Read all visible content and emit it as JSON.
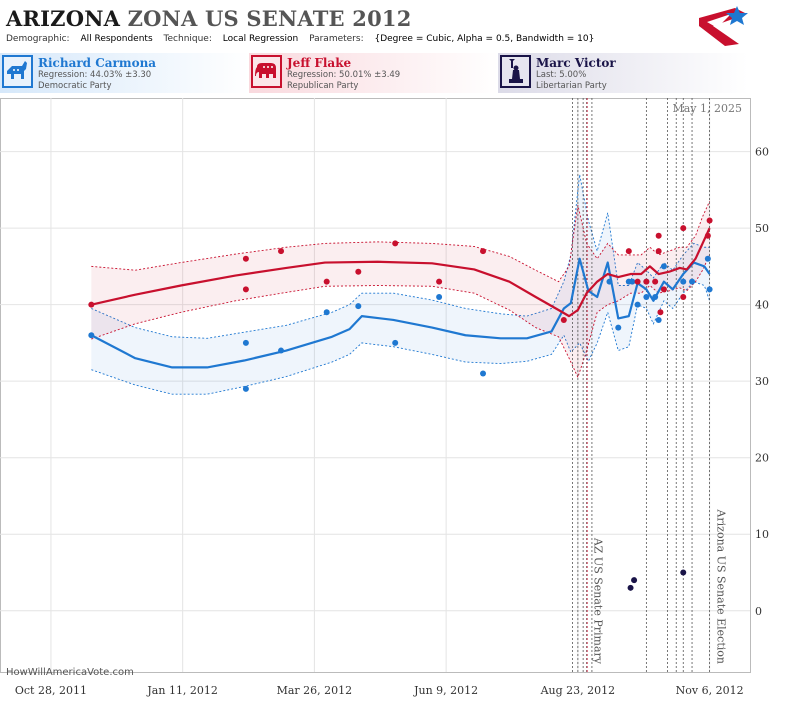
{
  "title": {
    "bold": "ARIZONA",
    "rest": "ZONA US SENATE 2012"
  },
  "params": {
    "demographic_label": "Demographic:",
    "demographic_value": "All Respondents",
    "technique_label": "Technique:",
    "technique_value": "Local Regression",
    "parameters_label": "Parameters:",
    "parameters_value": "{Degree = Cubic, Alpha = 0.5, Bandwidth = 10}"
  },
  "candidates": [
    {
      "name": "Richard Carmona",
      "line1": "Regression: 44.03% ±3.30",
      "line2": "Democratic Party",
      "color": "#1f78d1",
      "icon": "donkey-icon"
    },
    {
      "name": "Jeff Flake",
      "line1": "Regression: 50.01% ±3.49",
      "line2": "Republican Party",
      "color": "#c8102e",
      "icon": "elephant-icon"
    },
    {
      "name": "Marc Victor",
      "line1": "Last: 5.00%",
      "line2": "Libertarian Party",
      "color": "#1a1448",
      "icon": "statue-of-liberty-icon"
    }
  ],
  "footer": "HowWillAmericaVote.com",
  "chart_data": {
    "type": "line",
    "date_label": "May 1, 2025",
    "x_tick_labels": [
      "Oct 28, 2011",
      "Jan 11, 2012",
      "Mar 26, 2012",
      "Jun 9, 2012",
      "Aug 23, 2012",
      "Nov 6, 2012"
    ],
    "x_ticks": [
      "2011-10-28",
      "2012-01-11",
      "2012-03-26",
      "2012-06-09",
      "2012-08-23",
      "2012-11-06"
    ],
    "xlim": [
      "2011-09-29",
      "2012-11-29"
    ],
    "y_ticks": [
      0,
      10,
      20,
      30,
      40,
      50,
      60
    ],
    "ylim": [
      -8,
      67
    ],
    "events": [
      {
        "date": "2012-08-28",
        "label": "AZ US Senate Primary"
      },
      {
        "date": "2012-11-06",
        "label": "Arizona US Senate Election"
      }
    ],
    "event_lines": [
      "2012-08-20",
      "2012-08-23",
      "2012-08-26",
      "2012-08-28",
      "2012-08-31",
      "2012-10-01",
      "2012-10-13",
      "2012-10-18",
      "2012-10-22",
      "2012-10-27",
      "2012-11-06"
    ],
    "series": [
      {
        "name": "Richard Carmona",
        "color": "#1f78d1",
        "line": [
          [
            "2011-11-20",
            36
          ],
          [
            "2011-12-15",
            33
          ],
          [
            "2012-01-05",
            31.8
          ],
          [
            "2012-01-25",
            31.8
          ],
          [
            "2012-02-15",
            32.7
          ],
          [
            "2012-03-10",
            34
          ],
          [
            "2012-04-05",
            35.8
          ],
          [
            "2012-04-15",
            36.8
          ],
          [
            "2012-04-22",
            38.5
          ],
          [
            "2012-05-10",
            38
          ],
          [
            "2012-06-01",
            37
          ],
          [
            "2012-06-20",
            36
          ],
          [
            "2012-07-10",
            35.6
          ],
          [
            "2012-07-25",
            35.6
          ],
          [
            "2012-08-08",
            36.5
          ],
          [
            "2012-08-15",
            39.5
          ],
          [
            "2012-08-19",
            40.2
          ],
          [
            "2012-08-24",
            46
          ],
          [
            "2012-08-29",
            41.8
          ],
          [
            "2012-09-03",
            41
          ],
          [
            "2012-09-09",
            45.5
          ],
          [
            "2012-09-15",
            38.2
          ],
          [
            "2012-09-21",
            38.5
          ],
          [
            "2012-09-26",
            42.8
          ],
          [
            "2012-10-01",
            42
          ],
          [
            "2012-10-05",
            40.5
          ],
          [
            "2012-10-11",
            43
          ],
          [
            "2012-10-16",
            42
          ],
          [
            "2012-10-22",
            44
          ],
          [
            "2012-10-28",
            45.5
          ],
          [
            "2012-11-03",
            45
          ],
          [
            "2012-11-06",
            44
          ]
        ],
        "upper": [
          [
            "2011-11-20",
            39.5
          ],
          [
            "2011-12-15",
            37
          ],
          [
            "2012-01-05",
            35.8
          ],
          [
            "2012-01-25",
            35.6
          ],
          [
            "2012-02-15",
            36.4
          ],
          [
            "2012-03-10",
            37.3
          ],
          [
            "2012-04-05",
            39
          ],
          [
            "2012-04-15",
            40
          ],
          [
            "2012-04-22",
            41.5
          ],
          [
            "2012-05-10",
            41.5
          ],
          [
            "2012-06-01",
            40.6
          ],
          [
            "2012-06-20",
            39.5
          ],
          [
            "2012-07-10",
            38.8
          ],
          [
            "2012-07-25",
            38.5
          ],
          [
            "2012-08-08",
            39.5
          ],
          [
            "2012-08-15",
            43
          ],
          [
            "2012-08-19",
            46.5
          ],
          [
            "2012-08-24",
            57
          ],
          [
            "2012-08-29",
            51
          ],
          [
            "2012-09-03",
            47
          ],
          [
            "2012-09-09",
            52
          ],
          [
            "2012-09-15",
            42.5
          ],
          [
            "2012-09-21",
            42.5
          ],
          [
            "2012-09-26",
            45.5
          ],
          [
            "2012-10-01",
            44.5
          ],
          [
            "2012-10-05",
            43.5
          ],
          [
            "2012-10-11",
            45.5
          ],
          [
            "2012-10-16",
            44.5
          ],
          [
            "2012-10-22",
            46.5
          ],
          [
            "2012-10-28",
            48
          ],
          [
            "2012-11-03",
            47.5
          ],
          [
            "2012-11-06",
            47.5
          ]
        ],
        "lower": [
          [
            "2011-11-20",
            31.5
          ],
          [
            "2011-12-15",
            29.5
          ],
          [
            "2012-01-05",
            28.3
          ],
          [
            "2012-01-25",
            28.3
          ],
          [
            "2012-02-15",
            29.3
          ],
          [
            "2012-03-10",
            30.6
          ],
          [
            "2012-04-05",
            32.5
          ],
          [
            "2012-04-15",
            33.5
          ],
          [
            "2012-04-22",
            35
          ],
          [
            "2012-05-10",
            34.5
          ],
          [
            "2012-06-01",
            33.5
          ],
          [
            "2012-06-20",
            32.5
          ],
          [
            "2012-07-10",
            32.3
          ],
          [
            "2012-07-25",
            32.6
          ],
          [
            "2012-08-08",
            33.5
          ],
          [
            "2012-08-15",
            36
          ],
          [
            "2012-08-19",
            33.8
          ],
          [
            "2012-08-24",
            35
          ],
          [
            "2012-08-29",
            32.6
          ],
          [
            "2012-09-03",
            35
          ],
          [
            "2012-09-09",
            39
          ],
          [
            "2012-09-15",
            34
          ],
          [
            "2012-09-21",
            34.5
          ],
          [
            "2012-09-26",
            40
          ],
          [
            "2012-10-01",
            39.5
          ],
          [
            "2012-10-05",
            37.5
          ],
          [
            "2012-10-11",
            40.5
          ],
          [
            "2012-10-16",
            39.5
          ],
          [
            "2012-10-22",
            41.5
          ],
          [
            "2012-10-28",
            43
          ],
          [
            "2012-11-03",
            42.5
          ],
          [
            "2012-11-06",
            40.5
          ]
        ],
        "polls": [
          [
            "2011-11-20",
            36
          ],
          [
            "2012-02-16",
            35
          ],
          [
            "2012-02-16",
            29
          ],
          [
            "2012-03-07",
            34
          ],
          [
            "2012-04-02",
            39
          ],
          [
            "2012-04-20",
            39.8
          ],
          [
            "2012-05-11",
            35
          ],
          [
            "2012-06-05",
            41
          ],
          [
            "2012-06-30",
            31
          ],
          [
            "2012-09-10",
            43
          ],
          [
            "2012-09-15",
            37
          ],
          [
            "2012-09-21",
            43
          ],
          [
            "2012-09-23",
            43
          ],
          [
            "2012-09-26",
            40
          ],
          [
            "2012-10-01",
            41
          ],
          [
            "2012-10-01",
            43
          ],
          [
            "2012-10-06",
            41
          ],
          [
            "2012-10-08",
            38
          ],
          [
            "2012-10-11",
            45
          ],
          [
            "2012-10-22",
            43
          ],
          [
            "2012-10-27",
            43
          ],
          [
            "2012-11-05",
            46
          ],
          [
            "2012-11-06",
            42
          ]
        ]
      },
      {
        "name": "Jeff Flake",
        "color": "#c8102e",
        "line": [
          [
            "2011-11-20",
            40
          ],
          [
            "2011-12-15",
            41.3
          ],
          [
            "2012-01-10",
            42.5
          ],
          [
            "2012-02-10",
            43.8
          ],
          [
            "2012-03-10",
            44.8
          ],
          [
            "2012-04-01",
            45.5
          ],
          [
            "2012-05-01",
            45.6
          ],
          [
            "2012-06-01",
            45.4
          ],
          [
            "2012-06-25",
            44.6
          ],
          [
            "2012-07-15",
            43
          ],
          [
            "2012-07-30",
            41
          ],
          [
            "2012-08-12",
            39.3
          ],
          [
            "2012-08-18",
            38.5
          ],
          [
            "2012-08-23",
            39.3
          ],
          [
            "2012-08-28",
            41.5
          ],
          [
            "2012-09-03",
            43
          ],
          [
            "2012-09-09",
            44
          ],
          [
            "2012-09-15",
            43.6
          ],
          [
            "2012-09-22",
            44
          ],
          [
            "2012-09-28",
            44
          ],
          [
            "2012-10-03",
            45
          ],
          [
            "2012-10-08",
            44
          ],
          [
            "2012-10-14",
            44.3
          ],
          [
            "2012-10-20",
            44.8
          ],
          [
            "2012-10-24",
            44.6
          ],
          [
            "2012-10-29",
            46
          ],
          [
            "2012-11-02",
            48
          ],
          [
            "2012-11-06",
            50
          ]
        ],
        "upper": [
          [
            "2011-11-20",
            45
          ],
          [
            "2011-12-15",
            44.5
          ],
          [
            "2012-01-10",
            45.5
          ],
          [
            "2012-02-10",
            46.6
          ],
          [
            "2012-03-10",
            47.5
          ],
          [
            "2012-04-01",
            48
          ],
          [
            "2012-05-01",
            48.2
          ],
          [
            "2012-06-01",
            48
          ],
          [
            "2012-06-25",
            47.6
          ],
          [
            "2012-07-15",
            46.3
          ],
          [
            "2012-07-30",
            44.5
          ],
          [
            "2012-08-12",
            43
          ],
          [
            "2012-08-18",
            45
          ],
          [
            "2012-08-23",
            53
          ],
          [
            "2012-08-28",
            48
          ],
          [
            "2012-09-03",
            46
          ],
          [
            "2012-09-09",
            48
          ],
          [
            "2012-09-15",
            46.5
          ],
          [
            "2012-09-22",
            46.5
          ],
          [
            "2012-09-28",
            46.5
          ],
          [
            "2012-10-03",
            47.5
          ],
          [
            "2012-10-08",
            46.5
          ],
          [
            "2012-10-14",
            47
          ],
          [
            "2012-10-20",
            47.5
          ],
          [
            "2012-10-24",
            47.5
          ],
          [
            "2012-10-29",
            49
          ],
          [
            "2012-11-02",
            51.5
          ],
          [
            "2012-11-06",
            53.5
          ]
        ],
        "lower": [
          [
            "2011-11-20",
            35.5
          ],
          [
            "2011-12-15",
            37.5
          ],
          [
            "2012-01-10",
            39
          ],
          [
            "2012-02-10",
            40.5
          ],
          [
            "2012-03-10",
            41.6
          ],
          [
            "2012-04-01",
            42.4
          ],
          [
            "2012-05-01",
            42.5
          ],
          [
            "2012-06-01",
            42.4
          ],
          [
            "2012-06-25",
            41.5
          ],
          [
            "2012-07-15",
            39.3
          ],
          [
            "2012-07-30",
            37
          ],
          [
            "2012-08-12",
            35.8
          ],
          [
            "2012-08-18",
            33
          ],
          [
            "2012-08-23",
            30.5
          ],
          [
            "2012-08-28",
            34
          ],
          [
            "2012-09-03",
            39
          ],
          [
            "2012-09-09",
            40
          ],
          [
            "2012-09-15",
            40.5
          ],
          [
            "2012-09-22",
            41.5
          ],
          [
            "2012-09-28",
            41.5
          ],
          [
            "2012-10-03",
            42.5
          ],
          [
            "2012-10-08",
            41.5
          ],
          [
            "2012-10-14",
            41.8
          ],
          [
            "2012-10-20",
            42.2
          ],
          [
            "2012-10-24",
            41.8
          ],
          [
            "2012-10-29",
            43
          ],
          [
            "2012-11-02",
            44.5
          ],
          [
            "2012-11-06",
            46.5
          ]
        ],
        "polls": [
          [
            "2011-11-20",
            40
          ],
          [
            "2012-02-16",
            46
          ],
          [
            "2012-02-16",
            42
          ],
          [
            "2012-03-07",
            47
          ],
          [
            "2012-04-02",
            43
          ],
          [
            "2012-04-20",
            44.3
          ],
          [
            "2012-05-11",
            48
          ],
          [
            "2012-06-05",
            43
          ],
          [
            "2012-06-30",
            47
          ],
          [
            "2012-08-15",
            38
          ],
          [
            "2012-09-21",
            47
          ],
          [
            "2012-09-26",
            43
          ],
          [
            "2012-10-01",
            43
          ],
          [
            "2012-10-06",
            43
          ],
          [
            "2012-10-08",
            49
          ],
          [
            "2012-10-08",
            47
          ],
          [
            "2012-10-09",
            39
          ],
          [
            "2012-10-11",
            42
          ],
          [
            "2012-10-22",
            50
          ],
          [
            "2012-10-22",
            41
          ],
          [
            "2012-11-05",
            49
          ],
          [
            "2012-11-06",
            51
          ]
        ]
      },
      {
        "name": "Marc Victor",
        "color": "#1a1448",
        "polls": [
          [
            "2012-09-22",
            3
          ],
          [
            "2012-09-24",
            4
          ],
          [
            "2012-10-22",
            5
          ]
        ]
      }
    ]
  }
}
